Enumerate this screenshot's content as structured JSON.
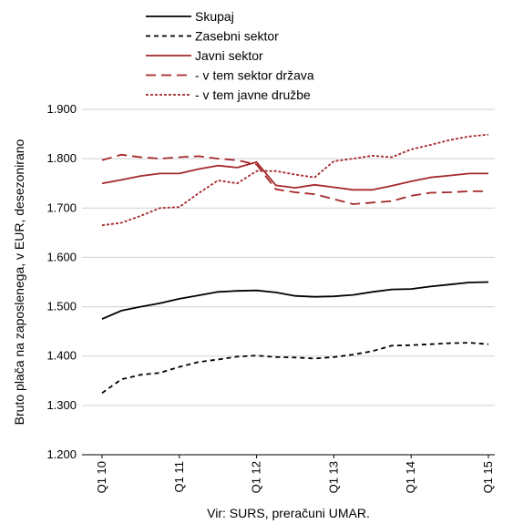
{
  "chart_data": {
    "type": "line",
    "ylabel": "Bruto plača na zaposlenega, v EUR, desezonirano",
    "xlabel": "Vir: SURS, preračuni UMAR.",
    "ylim": [
      1200,
      1900
    ],
    "yticks": [
      "1.200",
      "1.300",
      "1.400",
      "1.500",
      "1.600",
      "1.700",
      "1.800",
      "1.900"
    ],
    "x": [
      "Q1 10",
      "Q2 10",
      "Q3 10",
      "Q4 10",
      "Q1 11",
      "Q2 11",
      "Q3 11",
      "Q4 11",
      "Q1 12",
      "Q2 12",
      "Q3 12",
      "Q4 12",
      "Q1 13",
      "Q2 13",
      "Q3 13",
      "Q4 13",
      "Q1 14",
      "Q2 14",
      "Q3 14",
      "Q4 14",
      "Q1 15"
    ],
    "xtick_labels": [
      "Q1 10",
      "Q1 11",
      "Q1 12",
      "Q1 13",
      "Q1 14",
      "Q1 15"
    ],
    "grid": "horizontal",
    "legend_position": "top",
    "series": [
      {
        "name": "Skupaj",
        "color": "#000000",
        "dash": "solid",
        "values": [
          1475,
          1492,
          1500,
          1507,
          1516,
          1523,
          1530,
          1532,
          1533,
          1529,
          1522,
          1520,
          1521,
          1524,
          1530,
          1535,
          1536,
          1541,
          1545,
          1549,
          1550
        ]
      },
      {
        "name": "Zasebni sektor",
        "color": "#000000",
        "dash": "dashed-short",
        "values": [
          1325,
          1353,
          1362,
          1366,
          1378,
          1388,
          1393,
          1399,
          1401,
          1398,
          1397,
          1395,
          1398,
          1403,
          1410,
          1421,
          1422,
          1424,
          1426,
          1427,
          1424
        ]
      },
      {
        "name": "Javni sektor",
        "color": "#a5282b",
        "dash": "solid",
        "values": [
          1750,
          1757,
          1765,
          1770,
          1770,
          1779,
          1786,
          1782,
          1793,
          1746,
          1741,
          1747,
          1742,
          1737,
          1737,
          1745,
          1754,
          1762,
          1766,
          1770,
          1770
        ]
      },
      {
        "name": "- v tem sektor država",
        "color": "#a5282b",
        "dash": "dashed-long",
        "values": [
          1797,
          1808,
          1803,
          1800,
          1803,
          1805,
          1800,
          1797,
          1788,
          1738,
          1732,
          1728,
          1718,
          1708,
          1711,
          1714,
          1725,
          1731,
          1732,
          1734,
          1734
        ]
      },
      {
        "name": "- v tem javne družbe",
        "color": "#a5282b",
        "dash": "dotted",
        "values": [
          1665,
          1670,
          1684,
          1700,
          1702,
          1730,
          1756,
          1750,
          1775,
          1775,
          1768,
          1762,
          1795,
          1800,
          1806,
          1803,
          1819,
          1828,
          1838,
          1845,
          1849
        ]
      }
    ]
  }
}
